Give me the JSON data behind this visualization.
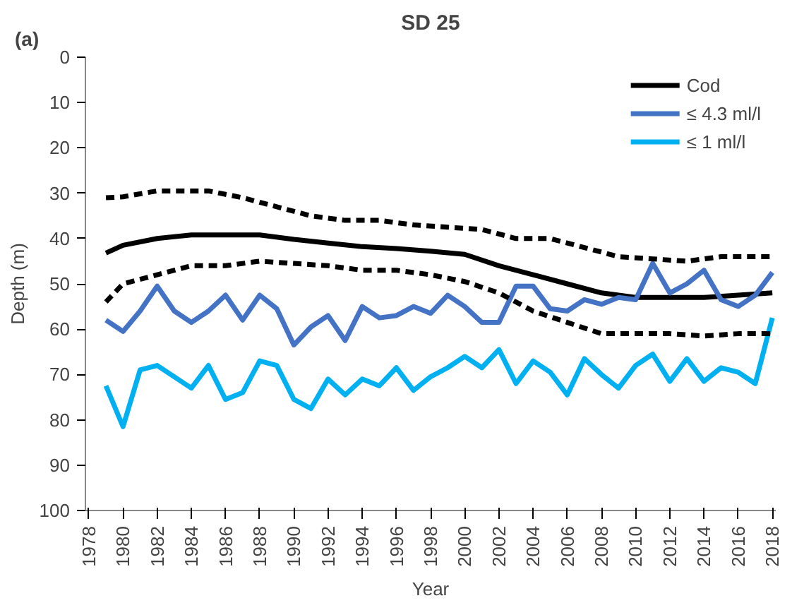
{
  "chart_data": {
    "type": "line",
    "title": "SD 25",
    "xlabel": "Year",
    "ylabel": "Depth (m)",
    "annotations": [
      "(a)"
    ],
    "x": [
      1979,
      1980,
      1981,
      1982,
      1983,
      1984,
      1985,
      1986,
      1987,
      1988,
      1989,
      1990,
      1991,
      1992,
      1993,
      1994,
      1995,
      1996,
      1997,
      1998,
      1999,
      2000,
      2001,
      2002,
      2003,
      2004,
      2005,
      2006,
      2007,
      2008,
      2009,
      2010,
      2011,
      2012,
      2013,
      2014,
      2015,
      2016,
      2017,
      2018
    ],
    "series": [
      {
        "name": "Cod",
        "color": "#000000",
        "x": [
          1979,
          1980,
          1982,
          1984,
          1988,
          1990,
          1992,
          1994,
          1996,
          1998,
          2000,
          2002,
          2004,
          2006,
          2008,
          2010,
          2012,
          2014,
          2016,
          2018
        ],
        "values": [
          43.2,
          41.5,
          40,
          39.2,
          39.2,
          40.2,
          41,
          41.8,
          42.2,
          42.8,
          43.5,
          46,
          48,
          50,
          52,
          53,
          53,
          53,
          52.5,
          52
        ]
      },
      {
        "name": "≤ 4.3 ml/l",
        "color": "#4472c4",
        "values": [
          58,
          60.5,
          56,
          50.5,
          56,
          58.5,
          56,
          52.5,
          58,
          52.5,
          55.5,
          63.5,
          59.5,
          57,
          62.5,
          55,
          57.5,
          57,
          55,
          56.5,
          52.5,
          55,
          58.5,
          58.5,
          50.5,
          50.5,
          55.5,
          56,
          53.5,
          54.5,
          53,
          53.5,
          45.5,
          52,
          50,
          47,
          53.5,
          55,
          52.5,
          47.5
        ]
      },
      {
        "name": "≤ 1 ml/l",
        "color": "#00b0f0",
        "values": [
          72.5,
          81.5,
          69,
          68,
          70.5,
          73,
          68,
          75.5,
          74,
          67,
          68,
          75.5,
          77.5,
          71,
          74.5,
          71,
          72.5,
          68.5,
          73.5,
          70.5,
          68.5,
          66,
          68.5,
          64.5,
          72,
          67,
          69.5,
          74.5,
          66.5,
          70,
          73,
          68,
          65.5,
          71.5,
          66.5,
          71.5,
          68.5,
          69.5,
          72,
          57.5
        ]
      },
      {
        "color": "#000000",
        "line_style": "dashed",
        "x": [
          1979,
          1980,
          1982,
          1985,
          1987,
          1989,
          1991,
          1993,
          1995,
          1997,
          1999,
          2001,
          2003,
          2005,
          2007,
          2009,
          2011,
          2013,
          2015,
          2018
        ],
        "values": [
          31,
          30.8,
          29.5,
          29.5,
          31,
          33,
          35,
          36,
          36,
          37,
          37.5,
          38,
          40,
          40,
          42,
          44,
          44.5,
          45,
          44,
          44
        ]
      },
      {
        "color": "#000000",
        "line_style": "dashed",
        "x": [
          1979,
          1980,
          1982,
          1984,
          1986,
          1988,
          1990,
          1992,
          1994,
          1996,
          1998,
          2000,
          2002,
          2004,
          2006,
          2008,
          2010,
          2012,
          2014,
          2016,
          2018
        ],
        "values": [
          54,
          50,
          48,
          46,
          46,
          45,
          45.5,
          46,
          47,
          47,
          48,
          49.5,
          52,
          56,
          58.5,
          61,
          61,
          61,
          61.5,
          61,
          61
        ]
      }
    ],
    "ylim": [
      100,
      0
    ],
    "yticks": [
      0,
      10,
      20,
      30,
      40,
      50,
      60,
      70,
      80,
      90,
      100
    ],
    "xlim": [
      1978,
      2018
    ],
    "xticks": [
      1978,
      1980,
      1982,
      1984,
      1986,
      1988,
      1990,
      1992,
      1994,
      1996,
      1998,
      2000,
      2002,
      2004,
      2006,
      2008,
      2010,
      2012,
      2014,
      2016,
      2018
    ],
    "grid": false,
    "legend": "top right",
    "line_style": "solid",
    "marker": "none"
  }
}
